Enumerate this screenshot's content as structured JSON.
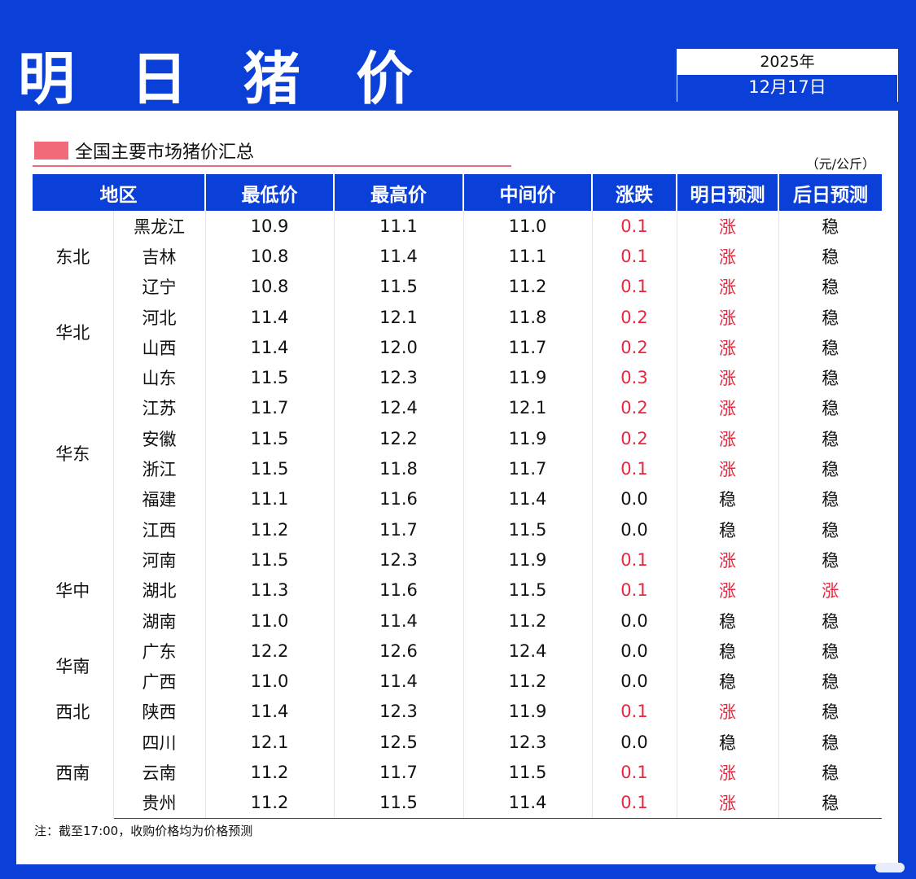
{
  "header": {
    "title": "明 日 猪 价",
    "year": "2025年",
    "date": "12月17日"
  },
  "section": {
    "title": "全国主要市场猪价汇总",
    "unit": "（元/公斤）"
  },
  "table": {
    "columns": [
      "地区",
      "最低价",
      "最高价",
      "中间价",
      "涨跌",
      "明日预测",
      "后日预测"
    ],
    "rows": [
      {
        "region": "东北",
        "province": "黑龙江",
        "low": "10.9",
        "high": "11.1",
        "mid": "11.0",
        "change": "0.1",
        "tomorrow": "涨",
        "dayafter": "稳"
      },
      {
        "region": "",
        "province": "吉林",
        "low": "10.8",
        "high": "11.4",
        "mid": "11.1",
        "change": "0.1",
        "tomorrow": "涨",
        "dayafter": "稳"
      },
      {
        "region": "",
        "province": "辽宁",
        "low": "10.8",
        "high": "11.5",
        "mid": "11.2",
        "change": "0.1",
        "tomorrow": "涨",
        "dayafter": "稳"
      },
      {
        "region": "华北",
        "province": "河北",
        "low": "11.4",
        "high": "12.1",
        "mid": "11.8",
        "change": "0.2",
        "tomorrow": "涨",
        "dayafter": "稳"
      },
      {
        "region": "",
        "province": "山西",
        "low": "11.4",
        "high": "12.0",
        "mid": "11.7",
        "change": "0.2",
        "tomorrow": "涨",
        "dayafter": "稳"
      },
      {
        "region": "华东",
        "province": "山东",
        "low": "11.5",
        "high": "12.3",
        "mid": "11.9",
        "change": "0.3",
        "tomorrow": "涨",
        "dayafter": "稳"
      },
      {
        "region": "",
        "province": "江苏",
        "low": "11.7",
        "high": "12.4",
        "mid": "12.1",
        "change": "0.2",
        "tomorrow": "涨",
        "dayafter": "稳"
      },
      {
        "region": "",
        "province": "安徽",
        "low": "11.5",
        "high": "12.2",
        "mid": "11.9",
        "change": "0.2",
        "tomorrow": "涨",
        "dayafter": "稳"
      },
      {
        "region": "",
        "province": "浙江",
        "low": "11.5",
        "high": "11.8",
        "mid": "11.7",
        "change": "0.1",
        "tomorrow": "涨",
        "dayafter": "稳"
      },
      {
        "region": "",
        "province": "福建",
        "low": "11.1",
        "high": "11.6",
        "mid": "11.4",
        "change": "0.0",
        "tomorrow": "稳",
        "dayafter": "稳"
      },
      {
        "region": "",
        "province": "江西",
        "low": "11.2",
        "high": "11.7",
        "mid": "11.5",
        "change": "0.0",
        "tomorrow": "稳",
        "dayafter": "稳"
      },
      {
        "region": "华中",
        "province": "河南",
        "low": "11.5",
        "high": "12.3",
        "mid": "11.9",
        "change": "0.1",
        "tomorrow": "涨",
        "dayafter": "稳"
      },
      {
        "region": "",
        "province": "湖北",
        "low": "11.3",
        "high": "11.6",
        "mid": "11.5",
        "change": "0.1",
        "tomorrow": "涨",
        "dayafter": "涨"
      },
      {
        "region": "",
        "province": "湖南",
        "low": "11.0",
        "high": "11.4",
        "mid": "11.2",
        "change": "0.0",
        "tomorrow": "稳",
        "dayafter": "稳"
      },
      {
        "region": "华南",
        "province": "广东",
        "low": "12.2",
        "high": "12.6",
        "mid": "12.4",
        "change": "0.0",
        "tomorrow": "稳",
        "dayafter": "稳"
      },
      {
        "region": "",
        "province": "广西",
        "low": "11.0",
        "high": "11.4",
        "mid": "11.2",
        "change": "0.0",
        "tomorrow": "稳",
        "dayafter": "稳"
      },
      {
        "region": "西北",
        "province": "陕西",
        "low": "11.4",
        "high": "12.3",
        "mid": "11.9",
        "change": "0.1",
        "tomorrow": "涨",
        "dayafter": "稳"
      },
      {
        "region": "西南",
        "province": "四川",
        "low": "12.1",
        "high": "12.5",
        "mid": "12.3",
        "change": "0.0",
        "tomorrow": "稳",
        "dayafter": "稳"
      },
      {
        "region": "",
        "province": "云南",
        "low": "11.2",
        "high": "11.7",
        "mid": "11.5",
        "change": "0.1",
        "tomorrow": "涨",
        "dayafter": "稳"
      },
      {
        "region": "",
        "province": "贵州",
        "low": "11.2",
        "high": "11.5",
        "mid": "11.4",
        "change": "0.1",
        "tomorrow": "涨",
        "dayafter": "稳"
      }
    ]
  },
  "note": "注：截至17:00，收购价格均为价格预测",
  "colors": {
    "brand": "#0a3fd8",
    "up": "#e8263f",
    "accent": "#f06a79"
  }
}
